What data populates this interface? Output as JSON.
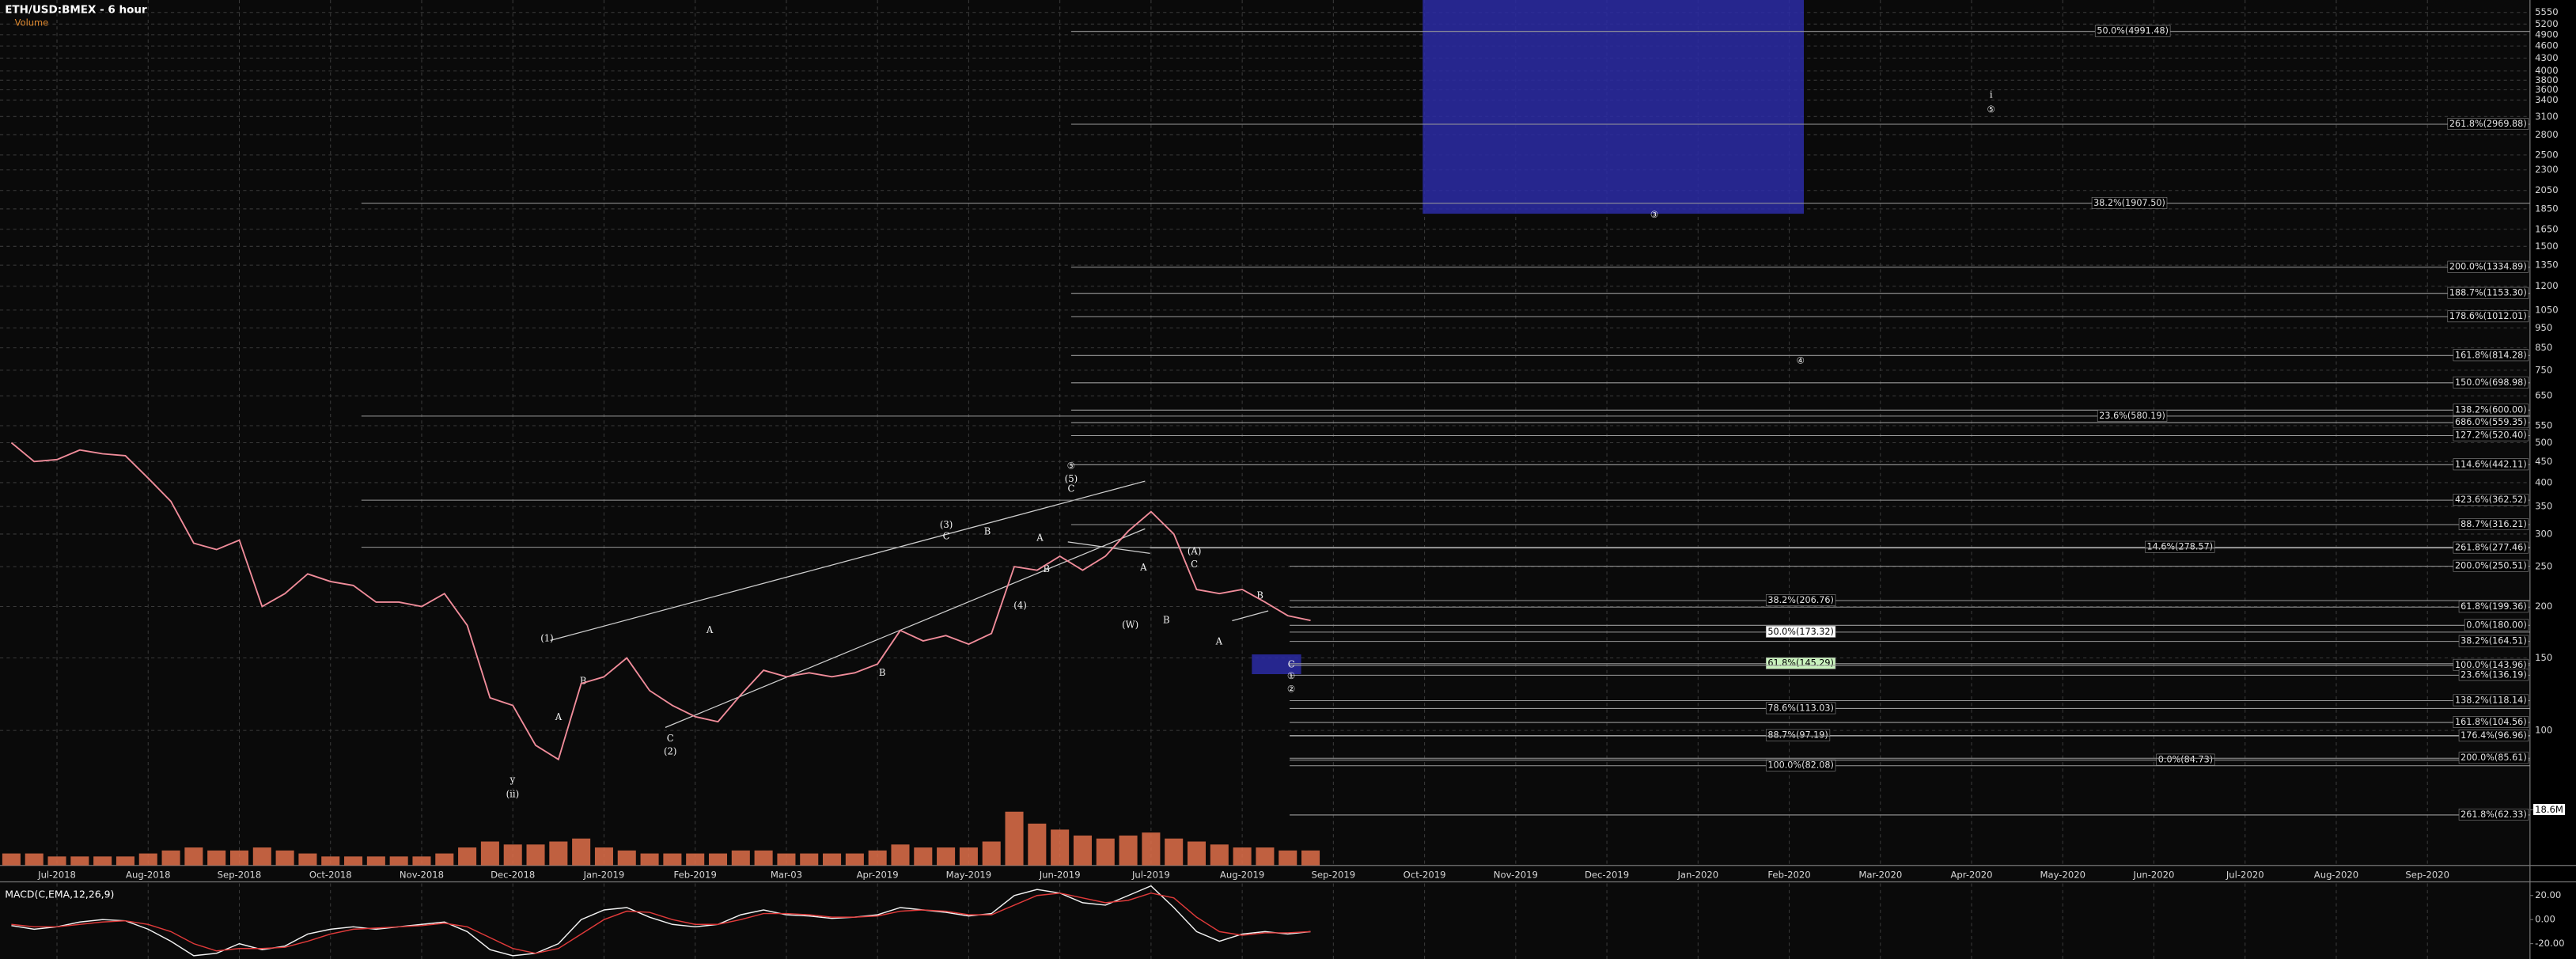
{
  "chart_data": [
    {
      "type": "line",
      "title": "ETH/USD:BMEX - 6 hour",
      "categories": [
        null,
        null,
        "Jul-2018",
        null,
        null,
        null,
        "Aug-2018",
        null,
        null,
        null,
        "Sep-2018",
        null,
        null,
        null,
        "Oct-2018",
        null,
        null,
        null,
        "Nov-2018",
        null,
        null,
        null,
        "Dec-2018",
        null,
        null,
        null,
        "Jan-2019",
        null,
        null,
        null,
        "Feb-2019",
        null,
        null,
        null,
        "Mar-03",
        null,
        null,
        null,
        "Apr-2019",
        null,
        null,
        null,
        "May-2019",
        null,
        null,
        null,
        "Jun-2019",
        null,
        null,
        null,
        "Jul-2019",
        null,
        null,
        null,
        "Aug-2019",
        null,
        null,
        null,
        "Sep-2019",
        null,
        null,
        null,
        "Oct-2019",
        null,
        null,
        null,
        "Nov-2019",
        null,
        null,
        null,
        "Dec-2019",
        null,
        null,
        null,
        "Jan-2020",
        null,
        null,
        null,
        "Feb-2020",
        null,
        null,
        null,
        "Mar-2020",
        null,
        null,
        null,
        "Apr-2020",
        null,
        null,
        null,
        "May-2020",
        null,
        null,
        null,
        "Jun-2020",
        null,
        null,
        null,
        "Jul-2020",
        null,
        null,
        null,
        "Aug-2020",
        null,
        null,
        null,
        "Sep-2020",
        null,
        null,
        null,
        null
      ],
      "values": [
        500,
        450,
        455,
        480,
        470,
        465,
        410,
        360,
        285,
        275,
        290,
        200,
        215,
        240,
        230,
        225,
        205,
        205,
        200,
        215,
        180,
        120,
        115,
        92,
        85,
        130,
        135,
        150,
        125,
        115,
        108,
        105,
        122,
        140,
        135,
        138,
        135,
        138,
        145,
        175,
        165,
        170,
        162,
        172,
        250,
        245,
        265,
        245,
        265,
        305,
        340,
        300,
        220,
        215,
        220,
        205,
        190,
        185,
        null,
        null,
        null,
        null,
        null,
        null,
        null,
        null,
        null,
        null,
        null,
        null,
        null,
        null,
        null,
        null,
        null,
        null,
        null,
        null,
        null,
        null,
        null,
        null,
        null,
        null,
        null,
        null,
        null,
        null,
        null,
        null,
        null,
        null,
        null,
        null,
        null,
        null,
        null,
        null,
        null,
        null,
        null,
        null,
        null,
        null,
        null,
        null,
        null,
        null,
        null,
        null,
        null
      ],
      "color": "#f08c9a",
      "log_scale": true,
      "grid": true,
      "ylim": [
        47,
        5950
      ],
      "yticks": [
        5550,
        5200,
        4900,
        4600,
        4300,
        4000,
        3800,
        3600,
        3400,
        3100,
        2800,
        2500,
        2300,
        2050,
        1850,
        1650,
        1500,
        1350,
        1200,
        1050,
        950,
        850,
        750,
        650,
        550,
        500,
        450,
        400,
        350,
        300,
        250,
        200,
        150,
        100
      ],
      "zones": [
        {
          "from": 1800,
          "to": 5950,
          "color": "#2b2ba6"
        },
        {
          "from": 137,
          "to": 153,
          "color": "#2b2ba6"
        }
      ],
      "levels": [
        {
          "label": "50.0%(4991.48)",
          "value": 4991.48
        },
        {
          "label": "261.8%(2969.88)",
          "value": 2969.88
        },
        {
          "label": "38.2%(1907.50)",
          "value": 1907.5
        },
        {
          "label": "200.0%(1334.89)",
          "value": 1334.89
        },
        {
          "label": "188.7%(1153.30)",
          "value": 1153.3
        },
        {
          "label": "178.6%(1012.01)",
          "value": 1012.01
        },
        {
          "label": "161.8%(814.28)",
          "value": 814.28
        },
        {
          "label": "150.0%(698.98)",
          "value": 698.98
        },
        {
          "label": "138.2%(600.00)",
          "value": 600.0
        },
        {
          "label": "23.6%(580.19)",
          "value": 580.19
        },
        {
          "label": "686.0%(559.35)",
          "value": 559.35
        },
        {
          "label": "127.2%(520.40)",
          "value": 520.4
        },
        {
          "label": "114.6%(442.11)",
          "value": 442.11
        },
        {
          "label": "423.6%(362.52)",
          "value": 362.52
        },
        {
          "label": "88.7%(316.21)",
          "value": 316.21
        },
        {
          "label": "14.6%(278.57)",
          "value": 278.57
        },
        {
          "label": "261.8%(277.46)",
          "value": 277.46
        },
        {
          "label": "200.0%(250.51)",
          "value": 250.51
        },
        {
          "label": "38.2%(206.76)",
          "value": 206.76
        },
        {
          "label": "61.8%(199.36)",
          "value": 199.36
        },
        {
          "label": "50.0%(173.32)",
          "value": 173.32
        },
        {
          "label": "0.0%(180.00)",
          "value": 180.0
        },
        {
          "label": "38.2%(164.51)",
          "value": 164.51
        },
        {
          "label": "61.8%(145.29)",
          "value": 145.29
        },
        {
          "label": "100.0%(143.96)",
          "value": 143.96
        },
        {
          "label": "23.6%(136.19)",
          "value": 136.19
        },
        {
          "label": "78.6%(113.03)",
          "value": 113.03
        },
        {
          "label": "138.2%(118.14)",
          "value": 118.14
        },
        {
          "label": "161.8%(104.56)",
          "value": 104.56
        },
        {
          "label": "88.7%(97.19)",
          "value": 97.19
        },
        {
          "label": "176.4%(96.96)",
          "value": 96.96
        },
        {
          "label": "100.0%(82.08)",
          "value": 82.08
        },
        {
          "label": "0.0%(84.73)",
          "value": 84.73
        },
        {
          "label": "200.0%(85.61)",
          "value": 85.61
        },
        {
          "label": "261.8%(62.33)",
          "value": 62.33
        }
      ],
      "annotations": [
        "(1)",
        "B",
        "A",
        "C",
        "(2)",
        "y",
        "(ii)",
        "A",
        "B",
        "(3)",
        "C",
        "B",
        "A",
        "(4)",
        "B",
        "⑤",
        "(5)",
        "C",
        "(A)",
        "C",
        "A",
        "(W)",
        "B",
        "A",
        "B",
        "③",
        "④",
        "i",
        "⑤",
        "C",
        "①",
        "②"
      ]
    },
    {
      "type": "bar",
      "title": "Volume",
      "values": [
        4,
        4,
        3,
        3,
        3,
        3,
        4,
        5,
        6,
        5,
        5,
        6,
        5,
        4,
        3,
        3,
        3,
        3,
        3,
        4,
        6,
        8,
        7,
        7,
        8,
        9,
        6,
        5,
        4,
        4,
        4,
        4,
        5,
        5,
        4,
        4,
        4,
        4,
        5,
        7,
        6,
        6,
        6,
        8,
        18,
        14,
        12,
        10,
        9,
        10,
        11,
        9,
        8,
        7,
        6,
        6,
        5,
        5,
        null,
        null,
        null,
        null,
        null,
        null,
        null,
        null,
        null,
        null,
        null,
        null,
        null,
        null,
        null,
        null,
        null,
        null,
        null,
        null,
        null,
        null,
        null,
        null,
        null,
        null,
        null,
        null,
        null,
        null,
        null,
        null,
        null,
        null,
        null,
        null,
        null,
        null,
        null,
        null,
        null,
        null,
        null,
        null,
        null,
        null,
        null,
        null,
        null,
        null,
        null,
        null,
        null
      ],
      "color": "#e0704a",
      "ylim": [
        0,
        22
      ],
      "yticks": [
        {
          "value": 18.6,
          "label": "18.6M"
        }
      ]
    },
    {
      "type": "line",
      "title": "MACD(C,EMA,12,26,9)",
      "series": [
        {
          "color": "#f2f2f2",
          "values": [
            -5,
            -8,
            -6,
            -2,
            0,
            -1,
            -8,
            -18,
            -30,
            -28,
            -20,
            -25,
            -22,
            -12,
            -8,
            -6,
            -8,
            -6,
            -4,
            -2,
            -10,
            -25,
            -30,
            -28,
            -20,
            0,
            8,
            10,
            2,
            -4,
            -6,
            -4,
            4,
            8,
            4,
            3,
            1,
            2,
            4,
            10,
            8,
            6,
            3,
            5,
            20,
            25,
            22,
            14,
            12,
            20,
            28,
            10,
            -10,
            -18,
            -12,
            -10,
            -12,
            -10,
            null,
            null,
            null,
            null,
            null,
            null,
            null,
            null,
            null,
            null,
            null,
            null,
            null,
            null,
            null,
            null,
            null,
            null,
            null,
            null,
            null,
            null,
            null,
            null,
            null,
            null,
            null,
            null,
            null,
            null,
            null,
            null,
            null,
            null,
            null,
            null,
            null,
            null,
            null,
            null,
            null,
            null,
            null,
            null,
            null,
            null,
            null,
            null,
            null,
            null,
            null,
            null,
            null
          ]
        },
        {
          "color": "#e03a3a",
          "values": [
            -4,
            -6,
            -6,
            -4,
            -2,
            -1,
            -4,
            -10,
            -20,
            -26,
            -24,
            -24,
            -23,
            -18,
            -12,
            -8,
            -7,
            -6,
            -5,
            -3,
            -6,
            -15,
            -24,
            -28,
            -24,
            -12,
            0,
            7,
            6,
            0,
            -4,
            -4,
            0,
            5,
            5,
            4,
            2,
            2,
            3,
            7,
            8,
            7,
            4,
            4,
            12,
            20,
            22,
            18,
            14,
            16,
            22,
            18,
            2,
            -10,
            -13,
            -11,
            -11,
            -10,
            null,
            null,
            null,
            null,
            null,
            null,
            null,
            null,
            null,
            null,
            null,
            null,
            null,
            null,
            null,
            null,
            null,
            null,
            null,
            null,
            null,
            null,
            null,
            null,
            null,
            null,
            null,
            null,
            null,
            null,
            null,
            null,
            null,
            null,
            null,
            null,
            null,
            null,
            null,
            null,
            null,
            null,
            null,
            null,
            null,
            null,
            null,
            null,
            null,
            null,
            null,
            null,
            null
          ]
        }
      ],
      "ylim": [
        -30,
        30
      ],
      "yticks": [
        {
          "value": 20,
          "label": "20.00"
        },
        {
          "value": 0,
          "label": "0.00"
        },
        {
          "value": -20,
          "label": "-20.00"
        }
      ]
    }
  ]
}
